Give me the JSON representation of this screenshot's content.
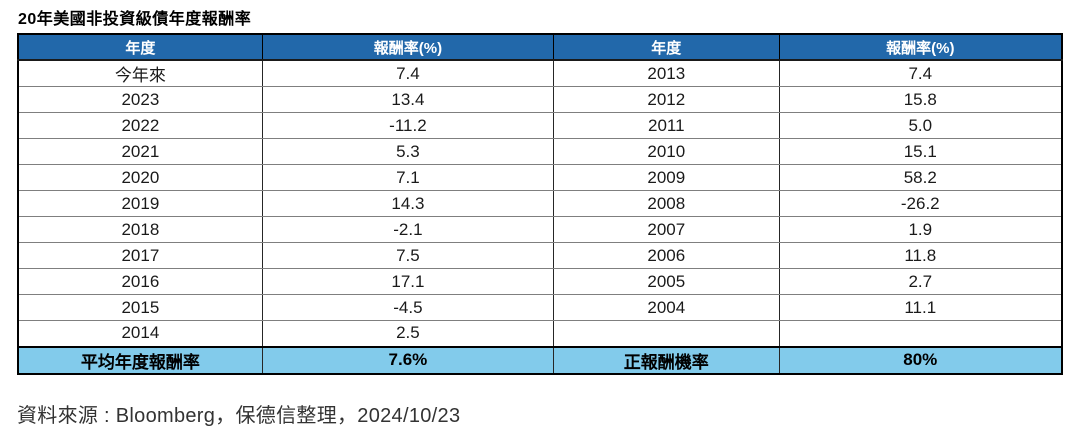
{
  "title": "20年美國非投資級債年度報酬率",
  "source": "資料來源 : Bloomberg，保德信整理，2024/10/23",
  "colors": {
    "header_bg": "#2268AA",
    "header_text": "#FFFFFF",
    "summary_bg": "#82CBEB",
    "body_text": "#1A1A1A",
    "grid_horizontal": "#7F7F7F",
    "grid_vertical": "#262626"
  },
  "table": {
    "headers": [
      "年度",
      "報酬率(%)",
      "年度",
      "報酬率(%)"
    ],
    "rows": [
      [
        "今年來",
        "7.4",
        "2013",
        "7.4"
      ],
      [
        "2023",
        "13.4",
        "2012",
        "15.8"
      ],
      [
        "2022",
        "-11.2",
        "2011",
        "5.0"
      ],
      [
        "2021",
        "5.3",
        "2010",
        "15.1"
      ],
      [
        "2020",
        "7.1",
        "2009",
        "58.2"
      ],
      [
        "2019",
        "14.3",
        "2008",
        "-26.2"
      ],
      [
        "2018",
        "-2.1",
        "2007",
        "1.9"
      ],
      [
        "2017",
        "7.5",
        "2006",
        "11.8"
      ],
      [
        "2016",
        "17.1",
        "2005",
        "2.7"
      ],
      [
        "2015",
        "-4.5",
        "2004",
        "11.1"
      ],
      [
        "2014",
        "2.5",
        "",
        ""
      ]
    ],
    "summary": [
      "平均年度報酬率",
      "7.6%",
      "正報酬機率",
      "80%"
    ]
  },
  "chart_data": {
    "type": "table",
    "title": "20年美國非投資級債年度報酬率",
    "columns": [
      "年度",
      "報酬率(%)",
      "年度",
      "報酬率(%)"
    ],
    "categories": [
      "今年來",
      "2023",
      "2022",
      "2021",
      "2020",
      "2019",
      "2018",
      "2017",
      "2016",
      "2015",
      "2014",
      "2013",
      "2012",
      "2011",
      "2010",
      "2009",
      "2008",
      "2007",
      "2006",
      "2005",
      "2004"
    ],
    "values": [
      7.4,
      13.4,
      -11.2,
      5.3,
      7.1,
      14.3,
      -2.1,
      7.5,
      17.1,
      -4.5,
      2.5,
      7.4,
      15.8,
      5.0,
      15.1,
      58.2,
      -26.2,
      1.9,
      11.8,
      2.7,
      11.1
    ],
    "summary": {
      "平均年度報酬率": "7.6%",
      "正報酬機率": "80%"
    },
    "source": "資料來源 : Bloomberg，保德信整理，2024/10/23"
  }
}
